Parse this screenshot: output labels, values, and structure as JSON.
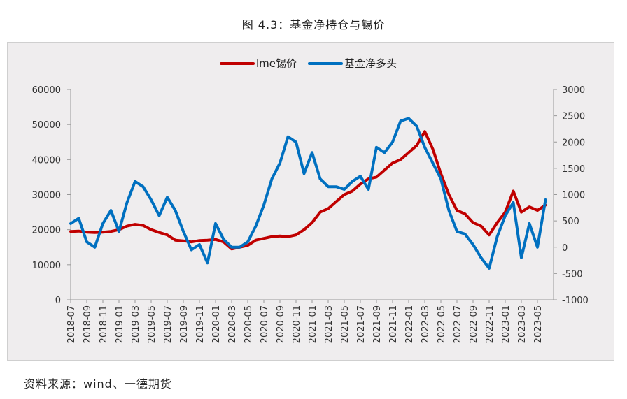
{
  "caption": "图 4.3：基金净持仓与锡价",
  "source": "资料来源：wind、一德期货",
  "chart_data": {
    "type": "line",
    "legend_position": "top-center",
    "grid": false,
    "x_tick_labels": [
      "2018-07",
      "2018-09",
      "2018-11",
      "2019-01",
      "2019-03",
      "2019-05",
      "2019-07",
      "2019-09",
      "2019-11",
      "2020-01",
      "2020-03",
      "2020-05",
      "2020-07",
      "2020-09",
      "2020-11",
      "2021-01",
      "2021-03",
      "2021-05",
      "2021-07",
      "2021-09",
      "2021-11",
      "2022-01",
      "2022-03",
      "2022-05",
      "2022-07",
      "2022-09",
      "2022-11",
      "2023-01",
      "2023-03",
      "2023-05"
    ],
    "y_left": {
      "min": 0,
      "max": 60000,
      "ticks": [
        "0",
        "10000",
        "20000",
        "30000",
        "40000",
        "50000",
        "60000"
      ]
    },
    "y_right": {
      "min": -1000,
      "max": 3000,
      "ticks": [
        "-1000",
        "-500",
        "0",
        "500",
        "1000",
        "1500",
        "2000",
        "2500",
        "3000"
      ]
    },
    "series": [
      {
        "name": "lme锡价",
        "axis": "left",
        "color": "#c00000",
        "points": [
          [
            "2018-07",
            19500
          ],
          [
            "2018-08",
            19600
          ],
          [
            "2018-09",
            19300
          ],
          [
            "2018-10",
            19200
          ],
          [
            "2018-11",
            19300
          ],
          [
            "2018-12",
            19500
          ],
          [
            "2019-01",
            20000
          ],
          [
            "2019-02",
            21000
          ],
          [
            "2019-03",
            21500
          ],
          [
            "2019-04",
            21200
          ],
          [
            "2019-05",
            20000
          ],
          [
            "2019-06",
            19200
          ],
          [
            "2019-07",
            18500
          ],
          [
            "2019-08",
            17000
          ],
          [
            "2019-09",
            16800
          ],
          [
            "2019-10",
            16500
          ],
          [
            "2019-11",
            16900
          ],
          [
            "2019-12",
            17000
          ],
          [
            "2020-01",
            17200
          ],
          [
            "2020-02",
            16500
          ],
          [
            "2020-03",
            14500
          ],
          [
            "2020-04",
            15000
          ],
          [
            "2020-05",
            15500
          ],
          [
            "2020-06",
            17000
          ],
          [
            "2020-07",
            17500
          ],
          [
            "2020-08",
            18000
          ],
          [
            "2020-09",
            18200
          ],
          [
            "2020-10",
            18000
          ],
          [
            "2020-11",
            18500
          ],
          [
            "2020-12",
            20000
          ],
          [
            "2021-01",
            22000
          ],
          [
            "2021-02",
            25000
          ],
          [
            "2021-03",
            26000
          ],
          [
            "2021-04",
            28000
          ],
          [
            "2021-05",
            30000
          ],
          [
            "2021-06",
            31000
          ],
          [
            "2021-07",
            33000
          ],
          [
            "2021-08",
            34500
          ],
          [
            "2021-09",
            35000
          ],
          [
            "2021-10",
            37000
          ],
          [
            "2021-11",
            39000
          ],
          [
            "2021-12",
            40000
          ],
          [
            "2022-01",
            42000
          ],
          [
            "2022-02",
            44000
          ],
          [
            "2022-03",
            48000
          ],
          [
            "2022-04",
            43000
          ],
          [
            "2022-05",
            36000
          ],
          [
            "2022-06",
            30000
          ],
          [
            "2022-07",
            25500
          ],
          [
            "2022-08",
            24500
          ],
          [
            "2022-09",
            22000
          ],
          [
            "2022-10",
            21000
          ],
          [
            "2022-11",
            18500
          ],
          [
            "2022-12",
            22000
          ],
          [
            "2023-01",
            25000
          ],
          [
            "2023-02",
            31000
          ],
          [
            "2023-03",
            25000
          ],
          [
            "2023-04",
            26500
          ],
          [
            "2023-05",
            25500
          ],
          [
            "2023-06",
            27000
          ]
        ]
      },
      {
        "name": "基金净多头",
        "axis": "right",
        "color": "#0070c0",
        "points": [
          [
            "2018-07",
            450
          ],
          [
            "2018-08",
            550
          ],
          [
            "2018-09",
            100
          ],
          [
            "2018-10",
            0
          ],
          [
            "2018-11",
            450
          ],
          [
            "2018-12",
            700
          ],
          [
            "2019-01",
            300
          ],
          [
            "2019-02",
            850
          ],
          [
            "2019-03",
            1250
          ],
          [
            "2019-04",
            1150
          ],
          [
            "2019-05",
            900
          ],
          [
            "2019-06",
            600
          ],
          [
            "2019-07",
            950
          ],
          [
            "2019-08",
            700
          ],
          [
            "2019-09",
            300
          ],
          [
            "2019-10",
            -50
          ],
          [
            "2019-11",
            50
          ],
          [
            "2019-12",
            -300
          ],
          [
            "2020-01",
            450
          ],
          [
            "2020-02",
            150
          ],
          [
            "2020-03",
            0
          ],
          [
            "2020-04",
            0
          ],
          [
            "2020-05",
            100
          ],
          [
            "2020-06",
            400
          ],
          [
            "2020-07",
            800
          ],
          [
            "2020-08",
            1300
          ],
          [
            "2020-09",
            1600
          ],
          [
            "2020-10",
            2100
          ],
          [
            "2020-11",
            2000
          ],
          [
            "2020-12",
            1400
          ],
          [
            "2021-01",
            1800
          ],
          [
            "2021-02",
            1300
          ],
          [
            "2021-03",
            1150
          ],
          [
            "2021-04",
            1150
          ],
          [
            "2021-05",
            1100
          ],
          [
            "2021-06",
            1250
          ],
          [
            "2021-07",
            1350
          ],
          [
            "2021-08",
            1100
          ],
          [
            "2021-09",
            1900
          ],
          [
            "2021-10",
            1800
          ],
          [
            "2021-11",
            2000
          ],
          [
            "2021-12",
            2400
          ],
          [
            "2022-01",
            2450
          ],
          [
            "2022-02",
            2300
          ],
          [
            "2022-03",
            1900
          ],
          [
            "2022-04",
            1600
          ],
          [
            "2022-05",
            1300
          ],
          [
            "2022-06",
            700
          ],
          [
            "2022-07",
            300
          ],
          [
            "2022-08",
            250
          ],
          [
            "2022-09",
            50
          ],
          [
            "2022-10",
            -200
          ],
          [
            "2022-11",
            -400
          ],
          [
            "2022-12",
            200
          ],
          [
            "2023-01",
            600
          ],
          [
            "2023-02",
            850
          ],
          [
            "2023-03",
            -200
          ],
          [
            "2023-04",
            450
          ],
          [
            "2023-05",
            0
          ],
          [
            "2023-06",
            900
          ]
        ]
      }
    ]
  }
}
